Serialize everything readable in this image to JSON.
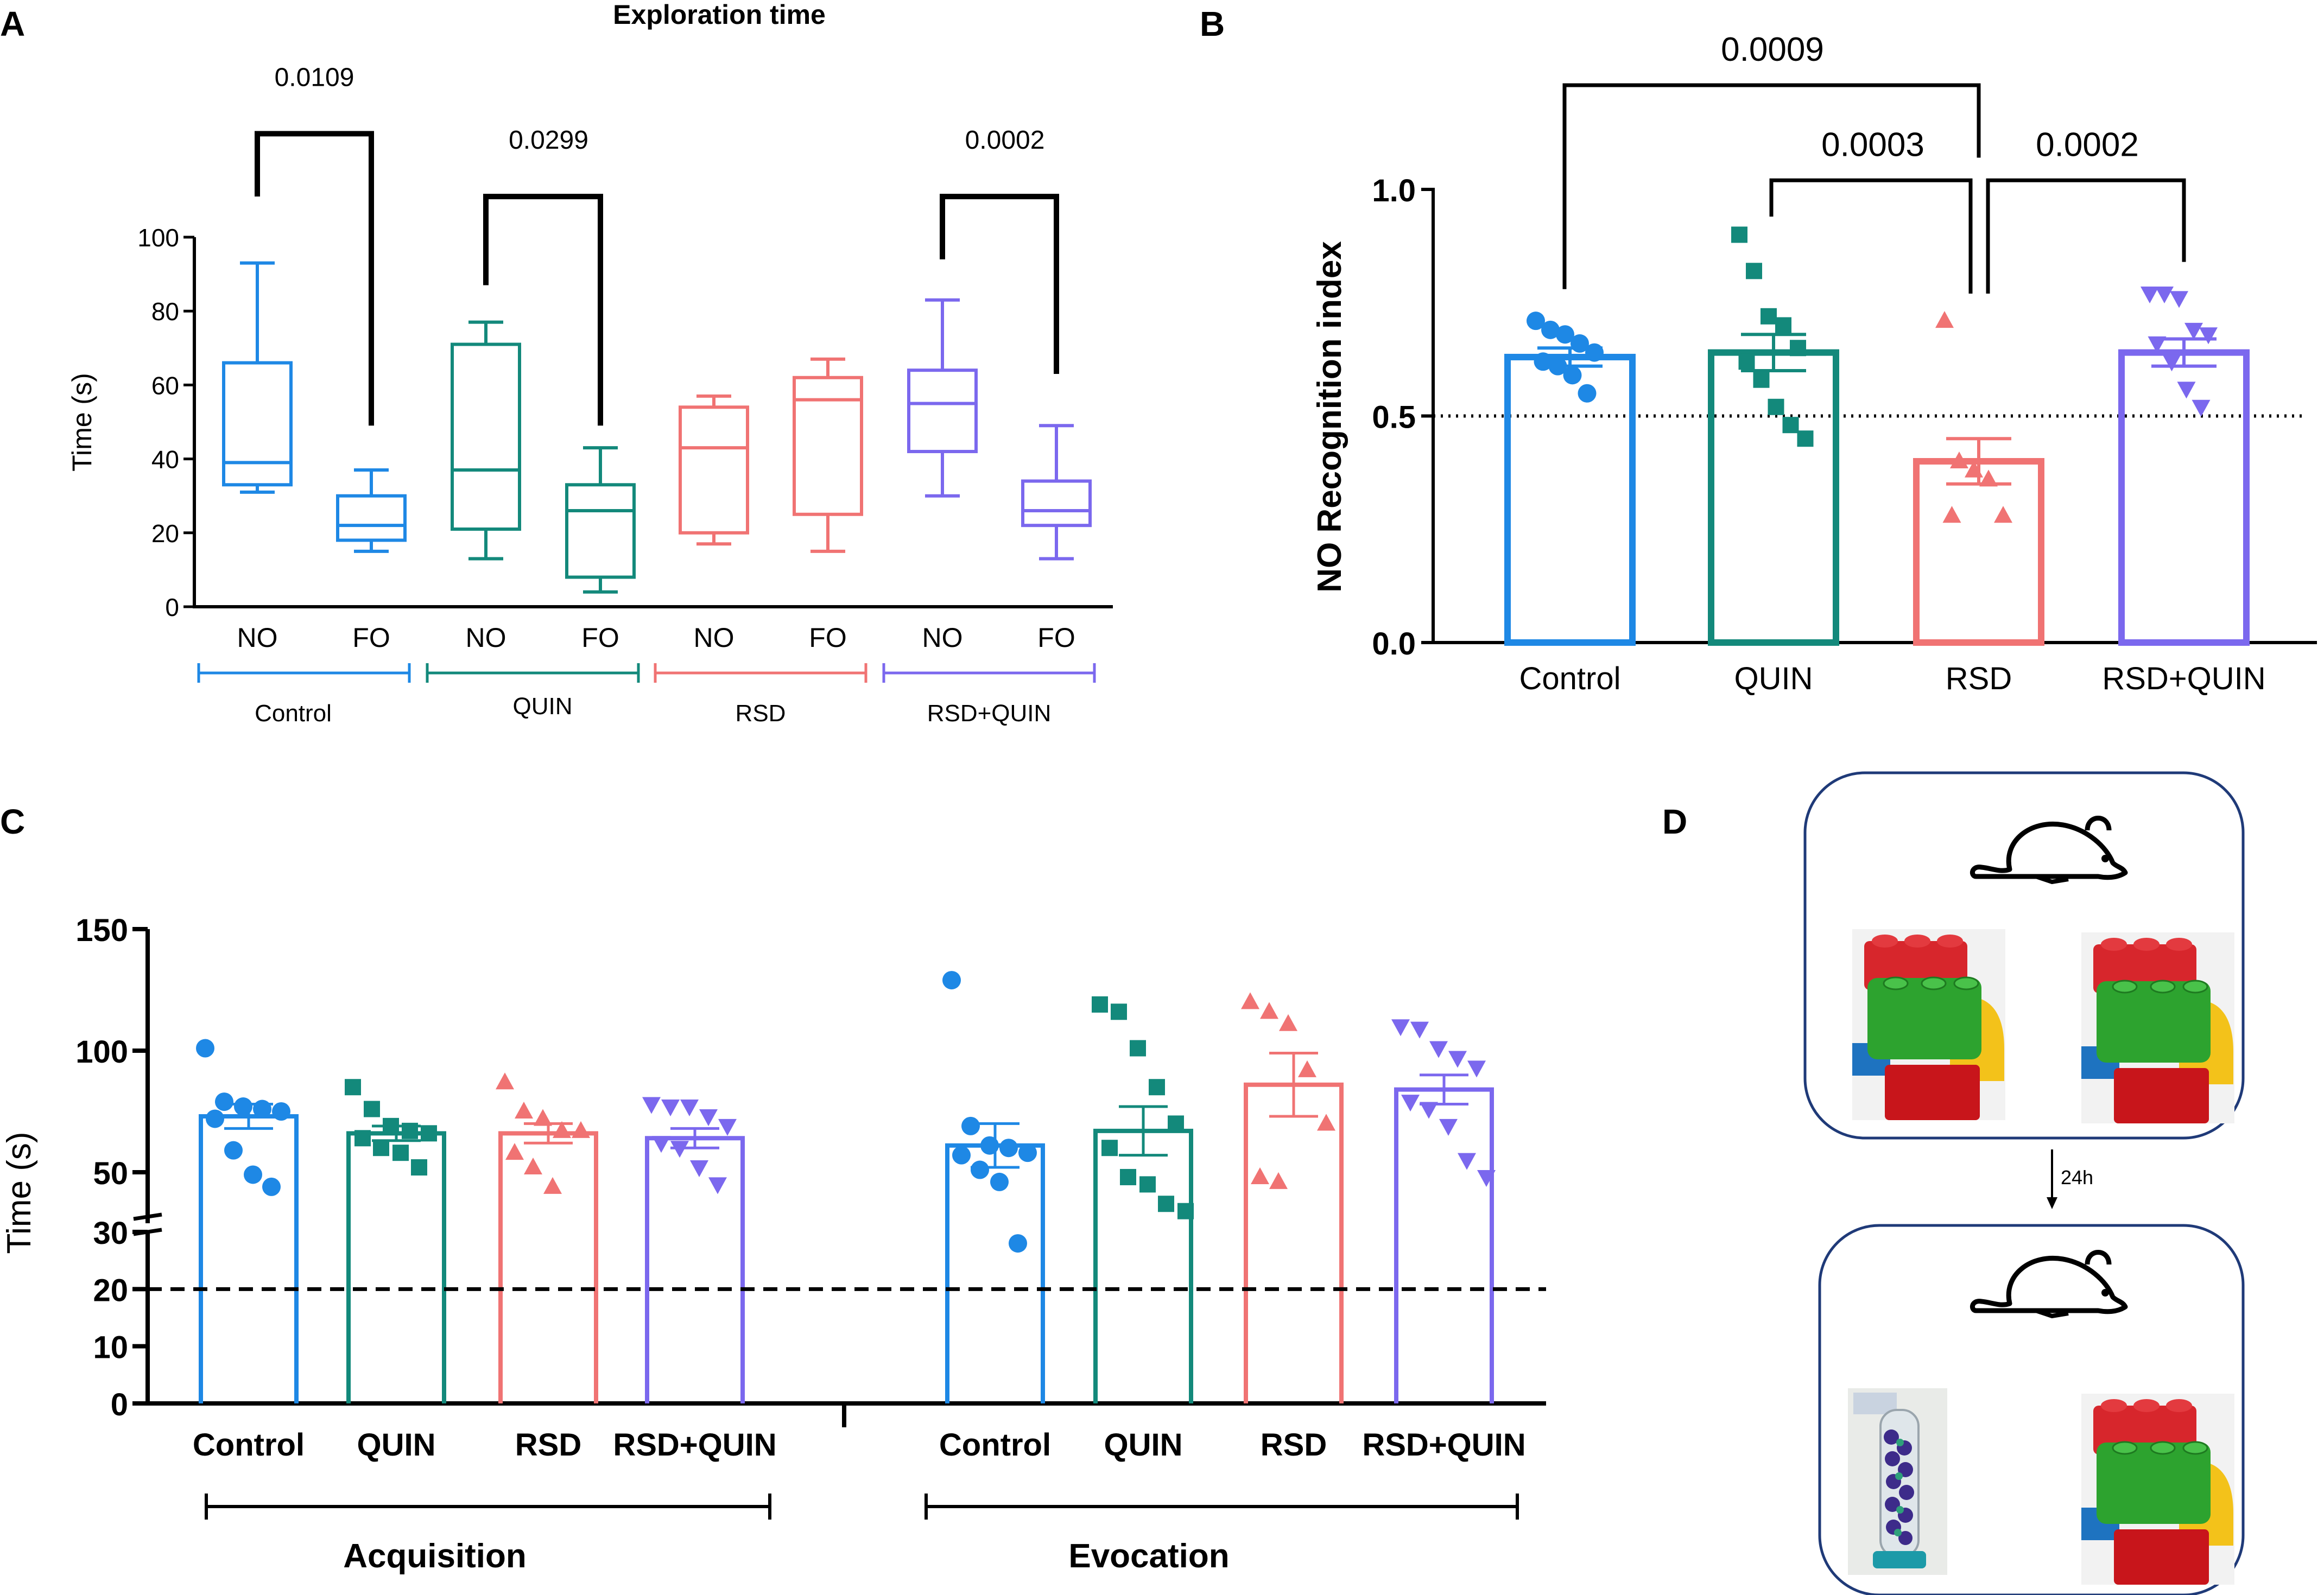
{
  "colors": {
    "control": "#1e88e5",
    "quin": "#13897b",
    "rsd": "#f07373",
    "rsd_quin": "#7b68ee",
    "axis": "#000000",
    "frame": "#1f3a78"
  },
  "panel_labels": {
    "a": "A",
    "b": "B",
    "c": "C",
    "d": "D"
  },
  "chart_data": [
    {
      "panel": "A",
      "type": "box",
      "title": "Exploration time",
      "ylabel": "Time (s)",
      "ylim": [
        0,
        100
      ],
      "yticks": [
        "0",
        "20",
        "40",
        "60",
        "80",
        "100"
      ],
      "categories": [
        "NO",
        "FO",
        "NO",
        "FO",
        "NO",
        "FO",
        "NO",
        "FO"
      ],
      "groups": [
        "Control",
        "QUIN",
        "RSD",
        "RSD+QUIN"
      ],
      "boxes": [
        {
          "group": 0,
          "cat": "NO",
          "min": 31,
          "q1": 33,
          "median": 39,
          "q3": 66,
          "max": 93
        },
        {
          "group": 0,
          "cat": "FO",
          "min": 15,
          "q1": 18,
          "median": 22,
          "q3": 30,
          "max": 37
        },
        {
          "group": 1,
          "cat": "NO",
          "min": 13,
          "q1": 21,
          "median": 37,
          "q3": 71,
          "max": 77
        },
        {
          "group": 1,
          "cat": "FO",
          "min": 4,
          "q1": 8,
          "median": 26,
          "q3": 33,
          "max": 43
        },
        {
          "group": 2,
          "cat": "NO",
          "min": 17,
          "q1": 20,
          "median": 43,
          "q3": 54,
          "max": 57
        },
        {
          "group": 2,
          "cat": "FO",
          "min": 15,
          "q1": 25,
          "median": 56,
          "q3": 62,
          "max": 67
        },
        {
          "group": 3,
          "cat": "NO",
          "min": 30,
          "q1": 42,
          "median": 55,
          "q3": 64,
          "max": 83
        },
        {
          "group": 3,
          "cat": "FO",
          "min": 13,
          "q1": 22,
          "median": 26,
          "q3": 34,
          "max": 49
        }
      ],
      "annotations": [
        {
          "label": "0.0109",
          "from": 0,
          "to": 1,
          "height": 128,
          "left_drop": 111,
          "right_drop": 49
        },
        {
          "label": "0.0299",
          "from": 2,
          "to": 3,
          "height": 111,
          "left_drop": 87,
          "right_drop": 49
        },
        {
          "label": "0.0002",
          "from": 6,
          "to": 7,
          "height": 111,
          "left_drop": 94,
          "right_drop": 63
        }
      ]
    },
    {
      "panel": "B",
      "type": "bar",
      "ylabel": "NO Recognition index",
      "ylim": [
        0,
        1.0
      ],
      "yticks": [
        "0.0",
        "0.5",
        "1.0"
      ],
      "reference_line": 0.5,
      "categories": [
        "Control",
        "QUIN",
        "RSD",
        "RSD+QUIN"
      ],
      "values": [
        0.63,
        0.64,
        0.4,
        0.64
      ],
      "sem": [
        0.02,
        0.04,
        0.05,
        0.03
      ],
      "points": [
        [
          0.71,
          0.69,
          0.68,
          0.66,
          0.64,
          0.62,
          0.61,
          0.59,
          0.55
        ],
        [
          0.9,
          0.82,
          0.72,
          0.7,
          0.65,
          0.62,
          0.58,
          0.52,
          0.48,
          0.45
        ],
        [
          0.71,
          0.4,
          0.38,
          0.36,
          0.28,
          0.28
        ],
        [
          0.77,
          0.77,
          0.76,
          0.69,
          0.68,
          0.66,
          0.62,
          0.56,
          0.52
        ]
      ],
      "annotations": [
        {
          "label": "0.0009",
          "from": 0,
          "to": 2,
          "y": 1.23,
          "left_end": 0.78,
          "right_end": 1.07
        },
        {
          "label": "0.0003",
          "from": 1,
          "to": 2,
          "y": 1.02,
          "left_end": 0.94,
          "right_end": 0.77
        },
        {
          "label": "0.0002",
          "from": 2,
          "to": 3,
          "y": 1.02,
          "left_end": 0.77,
          "right_end": 0.84
        }
      ]
    },
    {
      "panel": "C",
      "type": "bar",
      "ylabel": "Time (s)",
      "yticks": [
        "0",
        "10",
        "20",
        "30",
        "50",
        "100",
        "150"
      ],
      "axis_break": [
        30,
        45
      ],
      "reference_line": 20,
      "categories": [
        "Control",
        "QUIN",
        "RSD",
        "RSD+QUIN",
        "Control",
        "QUIN",
        "RSD",
        "RSD+QUIN"
      ],
      "phases": [
        "Acquisition",
        "Evocation"
      ],
      "values": [
        73,
        66,
        66,
        64,
        61,
        67,
        86,
        84
      ],
      "sem": [
        5,
        3,
        4,
        4,
        9,
        10,
        13,
        6
      ],
      "points": [
        [
          101,
          79,
          77,
          76,
          75,
          72,
          59,
          49,
          44
        ],
        [
          85,
          76,
          69,
          67,
          66,
          64,
          60,
          58,
          52
        ],
        [
          87,
          75,
          72,
          67,
          67,
          58,
          52,
          44
        ],
        [
          78,
          77,
          77,
          73,
          69,
          62,
          60,
          52,
          45
        ],
        [
          129,
          69,
          61,
          60,
          58,
          57,
          51,
          46,
          28
        ],
        [
          119,
          116,
          101,
          85,
          70,
          60,
          48,
          45,
          37,
          34
        ],
        [
          120,
          116,
          111,
          92,
          70,
          48,
          46
        ],
        [
          110,
          109,
          101,
          97,
          93,
          79,
          76,
          69,
          55,
          48
        ]
      ]
    }
  ],
  "panel_d": {
    "delay_label": "24h",
    "frames": [
      {
        "objects": [
          "lego-stack",
          "lego-stack"
        ]
      },
      {
        "objects": [
          "bead-tube",
          "lego-stack"
        ]
      }
    ]
  }
}
